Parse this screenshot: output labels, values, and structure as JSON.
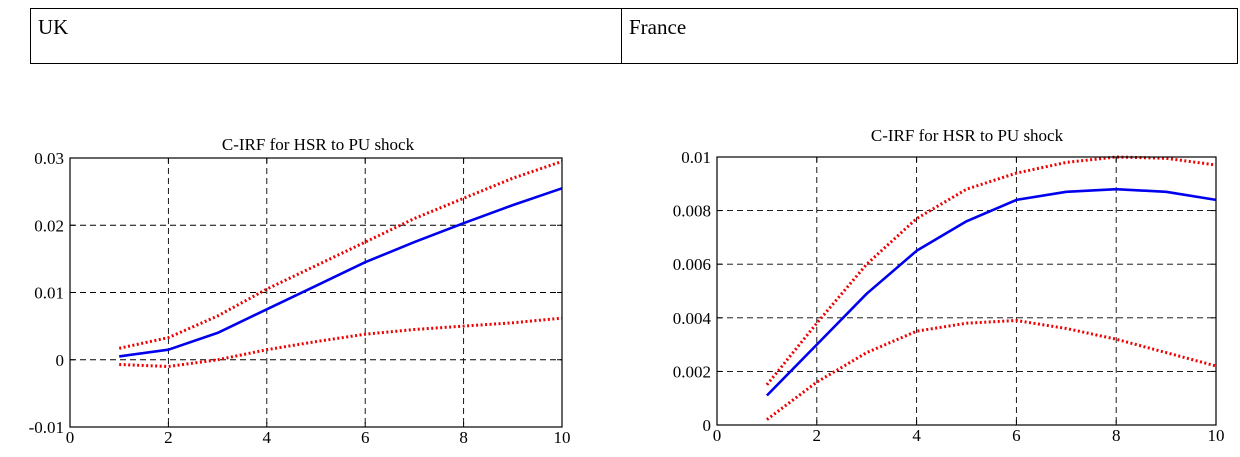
{
  "table": {
    "headers": [
      "UK",
      "France"
    ]
  },
  "colors": {
    "irf_line": "#0000ee",
    "band_line": "#ee0000",
    "grid": "#000000"
  },
  "chart_data": [
    {
      "type": "line",
      "title": "C-IRF for HSR to PU shock",
      "xlabel": "",
      "ylabel": "",
      "xlim": [
        0,
        10
      ],
      "ylim": [
        -0.01,
        0.03
      ],
      "x_ticks": [
        0,
        2,
        4,
        6,
        8,
        10
      ],
      "x_tick_labels": [
        "0",
        "2",
        "4",
        "6",
        "8",
        "10"
      ],
      "y_ticks": [
        -0.01,
        0,
        0.01,
        0.02,
        0.03
      ],
      "y_tick_labels": [
        "-0.01",
        "0",
        "0.01",
        "0.02",
        "0.03"
      ],
      "grid": true,
      "x": [
        1,
        2,
        3,
        4,
        5,
        6,
        7,
        8,
        9,
        10
      ],
      "series": [
        {
          "style": "solid-blue",
          "values": [
            0.0005,
            0.0015,
            0.004,
            0.0075,
            0.011,
            0.0145,
            0.0175,
            0.0203,
            0.023,
            0.0255
          ]
        },
        {
          "style": "dotted-red",
          "values": [
            0.0017,
            0.0033,
            0.0065,
            0.0105,
            0.014,
            0.0175,
            0.021,
            0.024,
            0.027,
            0.0295
          ]
        },
        {
          "style": "dotted-red",
          "values": [
            -0.0007,
            -0.001,
            0.0,
            0.0015,
            0.0027,
            0.0038,
            0.0045,
            0.005,
            0.0055,
            0.0062
          ]
        }
      ]
    },
    {
      "type": "line",
      "title": "C-IRF for HSR to PU shock",
      "xlabel": "",
      "ylabel": "",
      "xlim": [
        0,
        10
      ],
      "ylim": [
        0,
        0.01
      ],
      "x_ticks": [
        0,
        2,
        4,
        6,
        8,
        10
      ],
      "x_tick_labels": [
        "0",
        "2",
        "4",
        "6",
        "8",
        "10"
      ],
      "y_ticks": [
        0,
        0.002,
        0.004,
        0.006,
        0.008,
        0.01
      ],
      "y_tick_labels": [
        "0",
        "0.002",
        "0.004",
        "0.006",
        "0.008",
        "0.01"
      ],
      "grid": true,
      "x": [
        1,
        2,
        3,
        4,
        5,
        6,
        7,
        8,
        9,
        10
      ],
      "series": [
        {
          "style": "solid-blue",
          "values": [
            0.0011,
            0.003,
            0.0049,
            0.0065,
            0.0076,
            0.0084,
            0.0087,
            0.0088,
            0.0087,
            0.0084
          ]
        },
        {
          "style": "dotted-red",
          "values": [
            0.0015,
            0.0038,
            0.006,
            0.0077,
            0.0088,
            0.0094,
            0.0098,
            0.01,
            0.00995,
            0.0097
          ]
        },
        {
          "style": "dotted-red",
          "values": [
            0.0002,
            0.0016,
            0.0027,
            0.0035,
            0.0038,
            0.0039,
            0.0036,
            0.0032,
            0.0027,
            0.0022
          ]
        }
      ]
    }
  ]
}
